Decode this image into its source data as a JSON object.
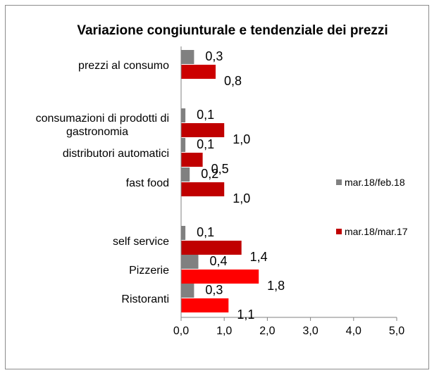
{
  "chart_data": {
    "type": "bar",
    "orientation": "horizontal",
    "title": "Variazione congiunturale e tendenziale dei prezzi",
    "categories": [
      "prezzi al consumo",
      "consumazioni di prodotti di gastronomia",
      "distributori automatici",
      "fast food",
      "self service",
      "Pizzerie",
      "Ristoranti"
    ],
    "series": [
      {
        "name": "mar.18/feb.18",
        "color": "#808080",
        "values": [
          0.3,
          0.1,
          0.1,
          0.2,
          0.1,
          0.4,
          0.3
        ],
        "labels": [
          "0,3",
          "0,1",
          "0,1",
          "0,2",
          "0,1",
          "0,4",
          "0,3"
        ]
      },
      {
        "name": "mar.18/mar.17",
        "colors": [
          "#cc0000",
          "#c00000",
          "#c00000",
          "#c00000",
          "#c00000",
          "#ff0000",
          "#ff0000"
        ],
        "legend_color": "#c00000",
        "values": [
          0.8,
          1.0,
          0.5,
          1.0,
          1.4,
          1.8,
          1.1
        ],
        "labels": [
          "0,8",
          "1,0",
          "0,5",
          "1,0",
          "1,4",
          "1,8",
          "1,1"
        ]
      }
    ],
    "xlim": [
      0,
      5
    ],
    "xticks": [
      0,
      1,
      2,
      3,
      4,
      5
    ],
    "xtick_labels": [
      "0,0",
      "1,0",
      "2,0",
      "3,0",
      "4,0",
      "5,0"
    ],
    "grid": false,
    "legend_position": "right"
  }
}
